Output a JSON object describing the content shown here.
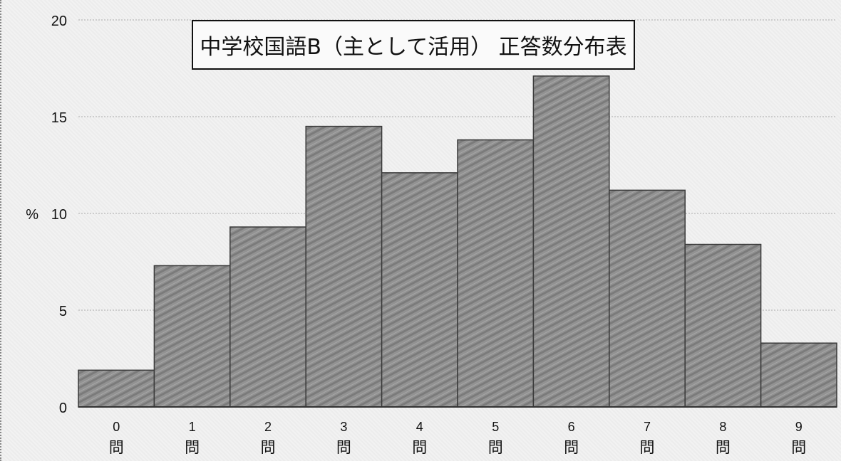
{
  "chart_data": {
    "type": "bar",
    "title": "中学校国語B（主として活用） 正答数分布表",
    "ylabel": "%",
    "xlabel": "",
    "ylim": [
      0,
      20
    ],
    "yticks": [
      0,
      5,
      10,
      15,
      20
    ],
    "categories": [
      "0",
      "1",
      "2",
      "3",
      "4",
      "5",
      "6",
      "7",
      "8",
      "9"
    ],
    "category_suffix": "問",
    "values": [
      1.9,
      7.3,
      9.3,
      14.5,
      12.1,
      13.8,
      17.1,
      11.2,
      8.4,
      3.3
    ],
    "grid": true,
    "legend": "none"
  },
  "colors": {
    "bar_fill": "#8c8c8c",
    "bar_stroke": "#3a3a3a",
    "grid": "#b9b9b9",
    "axis": "#333333",
    "background": "#f2f2f2"
  }
}
